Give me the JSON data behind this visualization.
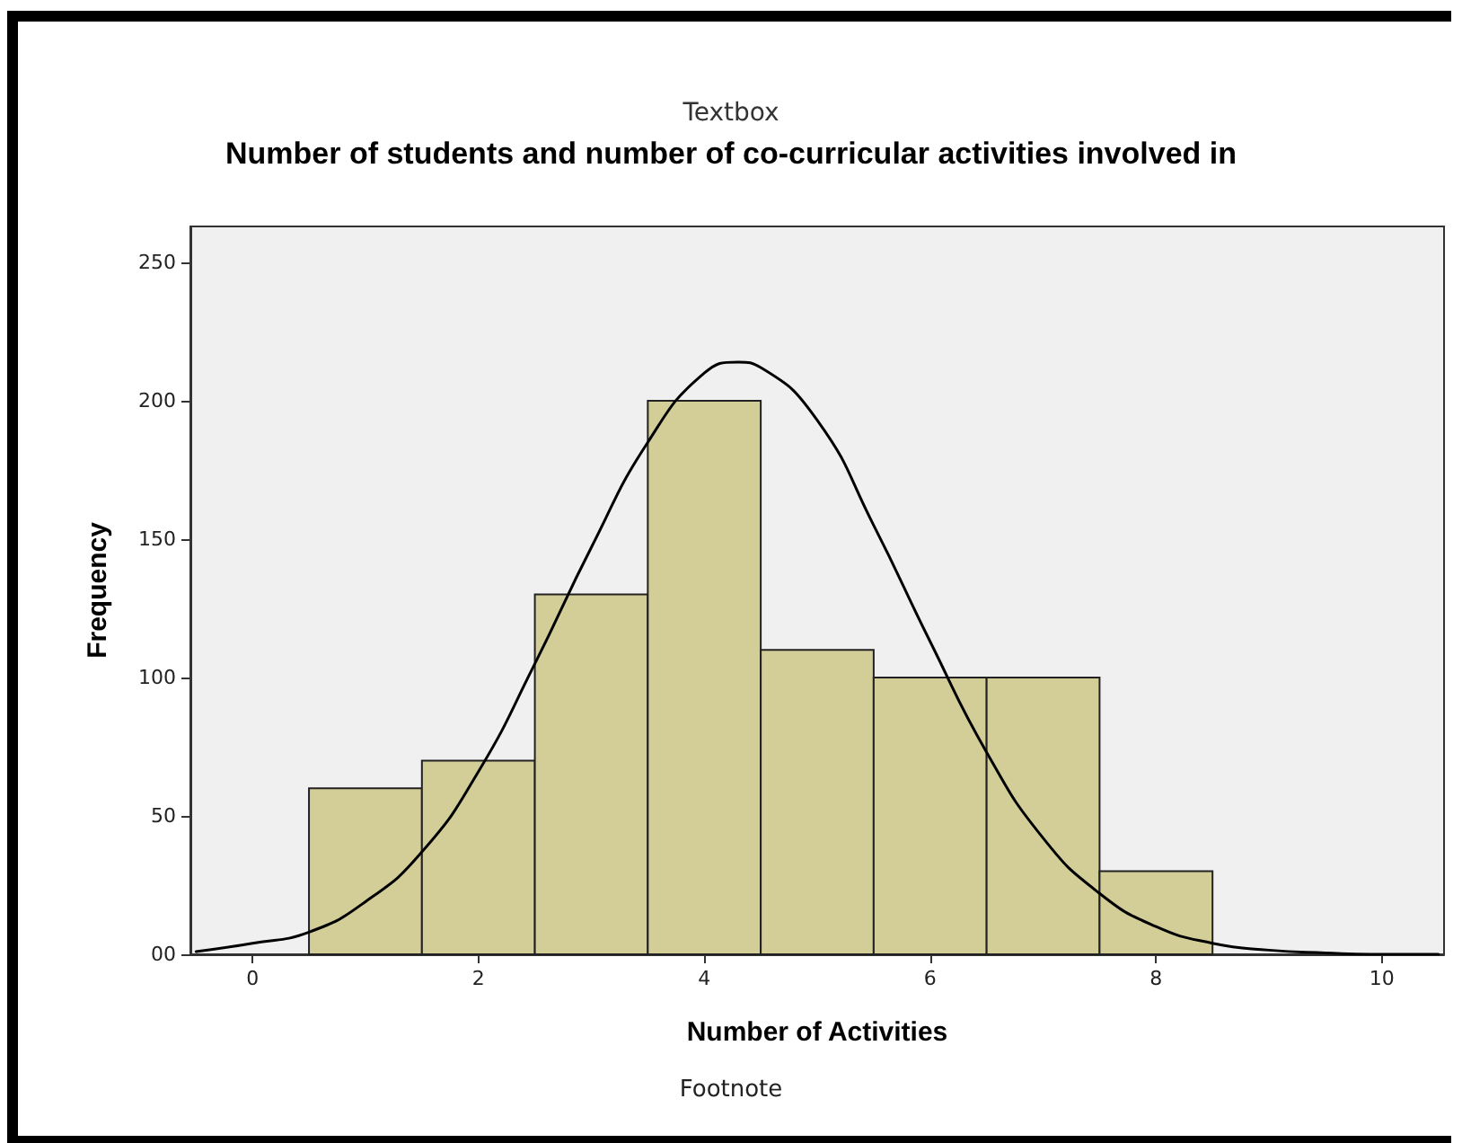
{
  "chart_data": {
    "type": "histogram",
    "subtitle": "Textbox",
    "title": "Number of students and number of co-curricular activities involved in",
    "xlabel": "Number of Activities",
    "ylabel": "Frequency",
    "annotations": [
      "Footnote"
    ],
    "bins": [
      0.5,
      1.5,
      2.5,
      3.5,
      4.5,
      5.5,
      6.5,
      7.5,
      8.5
    ],
    "values": [
      60,
      70,
      130,
      200,
      110,
      100,
      100,
      30
    ],
    "color": "#d3cd98",
    "series": [
      {
        "type": "line",
        "color": "#000000",
        "marker": "none",
        "line_style": "solid",
        "x": [
          -0.5,
          0,
          0.5,
          1,
          1.5,
          2,
          2.5,
          3,
          3.5,
          4,
          4.3,
          4.5,
          5,
          5.5,
          6,
          6.5,
          7,
          7.5,
          8,
          8.5,
          9,
          9.5,
          10,
          10.5
        ],
        "values": [
          1,
          4,
          8,
          19,
          37,
          66,
          105,
          147,
          185,
          210,
          214,
          212,
          193,
          155,
          113,
          73,
          42,
          22,
          10,
          4,
          1.5,
          0.5,
          0,
          0
        ]
      }
    ],
    "xlim": [
      -0.55,
      10.55
    ],
    "xticks": [
      0,
      2,
      4,
      6,
      8,
      10
    ],
    "ylim": [
      0,
      263
    ],
    "yticks": [
      {
        "value": 0,
        "label": "00"
      },
      50,
      100,
      150,
      200,
      250
    ],
    "grid": false
  }
}
